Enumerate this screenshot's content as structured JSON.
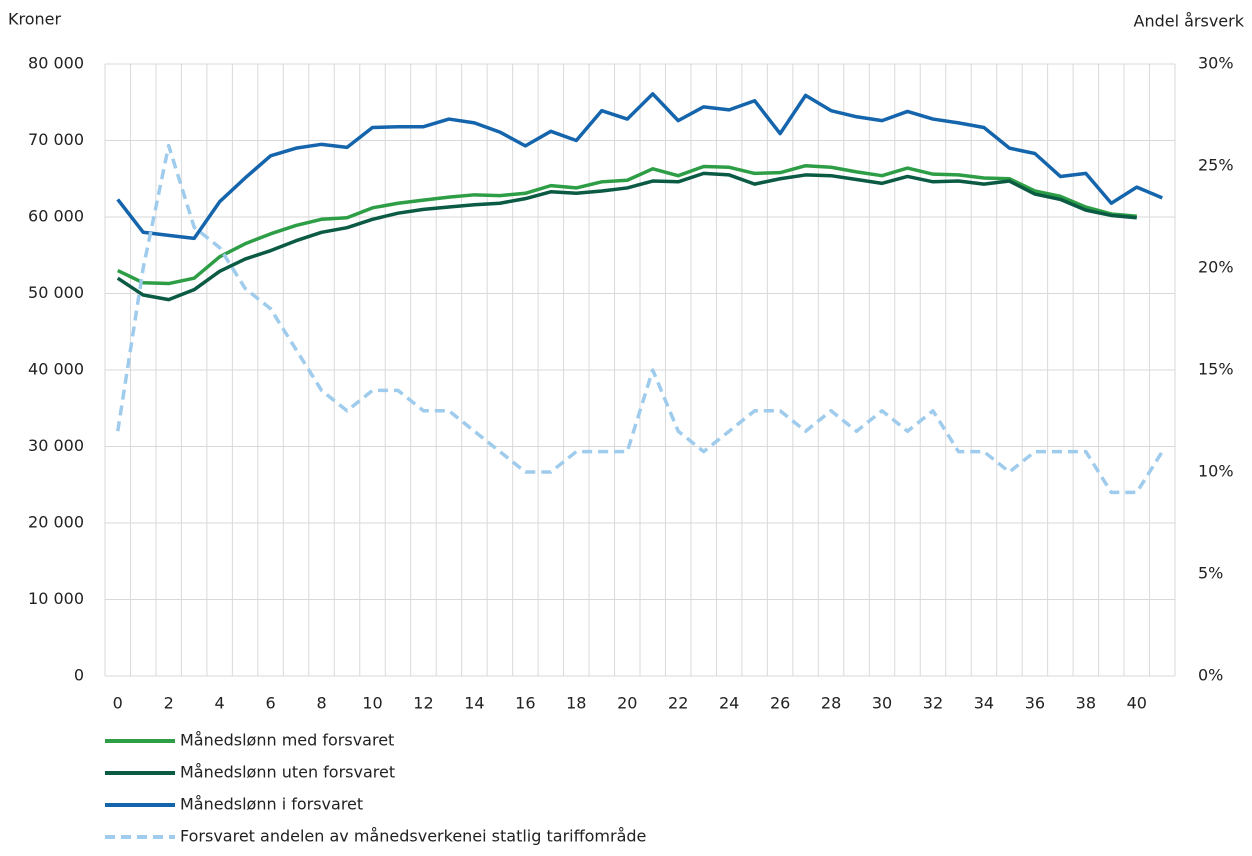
{
  "chart_data": {
    "type": "line",
    "y_axis_label": "Kroner",
    "y2_axis_label": "Andel årsverk",
    "categories": [
      "0",
      null,
      "2",
      null,
      "4",
      null,
      "6",
      null,
      "8",
      null,
      "10",
      null,
      "12",
      null,
      "14",
      null,
      "16",
      null,
      "18",
      null,
      "20",
      null,
      "22",
      null,
      "24",
      null,
      "26",
      null,
      "28",
      null,
      "30",
      null,
      "32",
      null,
      "34",
      null,
      "36",
      null,
      "38",
      null,
      "40",
      null
    ],
    "ylim": [
      0,
      80000
    ],
    "yticks": [
      0,
      {
        "value": 10000,
        "label": "10 000"
      },
      {
        "value": 20000,
        "label": "20 000"
      },
      {
        "value": 30000,
        "label": "30 000"
      },
      {
        "value": 40000,
        "label": "40 000"
      },
      {
        "value": 50000,
        "label": "50 000"
      },
      {
        "value": 60000,
        "label": "60 000"
      },
      {
        "value": 70000,
        "label": "70 000"
      },
      {
        "value": 80000,
        "label": "80 000"
      }
    ],
    "y2lim": [
      0,
      30
    ],
    "y2ticks": [
      {
        "value": 0,
        "label": "0%"
      },
      {
        "value": 5,
        "label": "5%"
      },
      {
        "value": 10,
        "label": "10%"
      },
      {
        "value": 15,
        "label": "15%"
      },
      {
        "value": 20,
        "label": "20%"
      },
      {
        "value": 25,
        "label": "25%"
      },
      {
        "value": 30,
        "label": "30%"
      }
    ],
    "grid": true,
    "series": [
      {
        "name": "Månedslønn med forsvaret",
        "color": "#2e9e46",
        "dashed": false,
        "values": [
          53000,
          51400,
          51300,
          52000,
          54800,
          56500,
          57800,
          58900,
          59700,
          59900,
          61200,
          61800,
          62200,
          62600,
          62900,
          62800,
          63100,
          64100,
          63800,
          64600,
          64800,
          66300,
          65400,
          66600,
          66500,
          65700,
          65800,
          66700,
          66500,
          65900,
          65400,
          66400,
          65600,
          65500,
          65100,
          65000,
          63400,
          62700,
          61300,
          60400,
          60100,
          null
        ]
      },
      {
        "name": "Månedslønn uten forsvaret",
        "color": "#0b5a44",
        "dashed": false,
        "values": [
          52000,
          49800,
          49200,
          50500,
          52900,
          54500,
          55600,
          56900,
          58000,
          58600,
          59700,
          60500,
          61000,
          61300,
          61600,
          61800,
          62400,
          63300,
          63100,
          63400,
          63800,
          64700,
          64600,
          65700,
          65500,
          64300,
          65000,
          65500,
          65400,
          64900,
          64400,
          65300,
          64600,
          64700,
          64300,
          64700,
          63000,
          62300,
          60900,
          60200,
          59900,
          null
        ]
      },
      {
        "name": "Månedslønn i forsvaret",
        "color": "#1565ad",
        "dashed": false,
        "values": [
          62300,
          58000,
          57600,
          57200,
          62000,
          65100,
          68000,
          69000,
          69500,
          69100,
          71700,
          71800,
          71800,
          72800,
          72300,
          71100,
          69300,
          71200,
          70000,
          73900,
          72800,
          76100,
          72600,
          74400,
          74000,
          75200,
          70900,
          75900,
          73900,
          73100,
          72600,
          73800,
          72800,
          72300,
          71700,
          69000,
          68300,
          65300,
          65700,
          61800,
          63900,
          62500
        ]
      },
      {
        "name": "Forsvaret andelen av månedsverkenei statlig tariffområde",
        "color": "#9fcbec",
        "dashed": true,
        "axis": "y2",
        "values": [
          12,
          20,
          26,
          22,
          21,
          19,
          18,
          16,
          14,
          13,
          14,
          14,
          13,
          13,
          12,
          11,
          10,
          10,
          11,
          11,
          11,
          15,
          12,
          11,
          12,
          13,
          13,
          12,
          13,
          12,
          13,
          12,
          13,
          11,
          11,
          10,
          11,
          11,
          11,
          9,
          9,
          11
        ]
      }
    ]
  }
}
